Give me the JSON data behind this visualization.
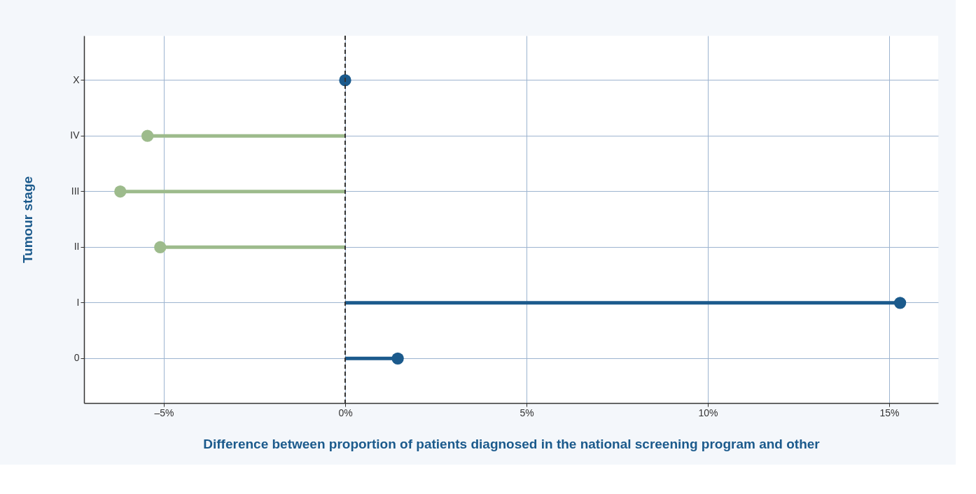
{
  "chart_data": {
    "type": "lollipop",
    "orientation": "horizontal",
    "xlabel": "Difference between proportion of patients diagnosed in the national screening program and other",
    "ylabel": "Tumour stage",
    "categories": [
      "X",
      "IV",
      "III",
      "II",
      "I",
      "0"
    ],
    "values": [
      0.0,
      -5.45,
      -6.2,
      -5.1,
      15.3,
      1.45
    ],
    "colors": [
      "#1b5a8c",
      "#9dbb8c",
      "#9dbb8c",
      "#9dbb8c",
      "#1b5a8c",
      "#1b5a8c"
    ],
    "xlim": [
      -7.2,
      16.35
    ],
    "xticks": [
      {
        "value": -5,
        "label": "–5%"
      },
      {
        "value": 0,
        "label": "0%"
      },
      {
        "value": 5,
        "label": "5%"
      },
      {
        "value": 10,
        "label": "10%"
      },
      {
        "value": 15,
        "label": "15%"
      }
    ],
    "ref_lines": [
      {
        "axis": "x",
        "value": 0,
        "color": "#333333",
        "line_style": "dashed"
      }
    ],
    "grid": true,
    "marker": "circle"
  }
}
